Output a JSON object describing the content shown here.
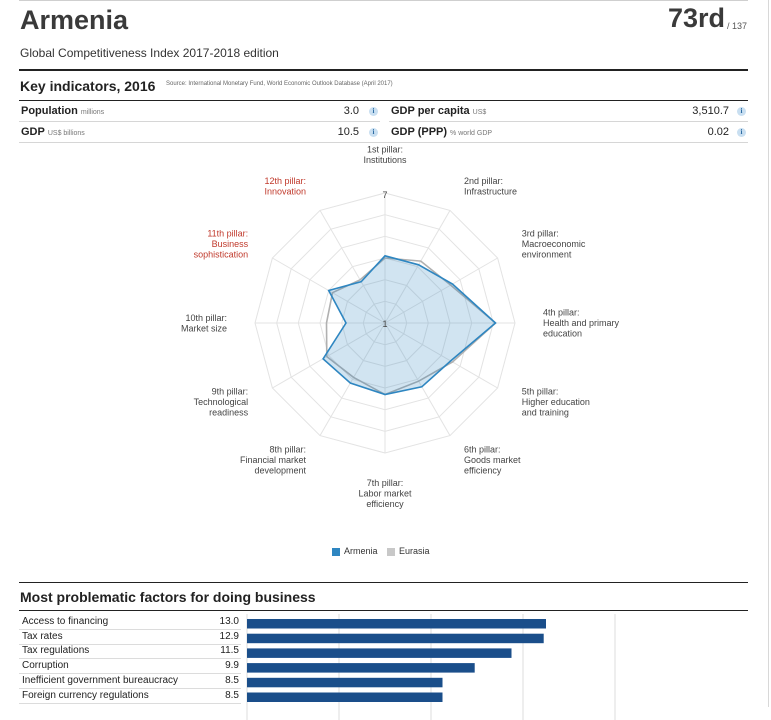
{
  "header": {
    "country": "Armenia",
    "rank": "73rd",
    "rank_of": "/ 137",
    "edition": "Global Competitiveness Index 2017-2018 edition"
  },
  "key_indicators": {
    "title": "Key indicators, 2016",
    "source": "Source: International Monetary Fund, World Economic Outlook Database (April 2017)",
    "left": [
      {
        "label": "Population",
        "unit": "millions",
        "value": "3.0"
      },
      {
        "label": "GDP",
        "unit": "US$ billions",
        "value": "10.5"
      }
    ],
    "right": [
      {
        "label": "GDP per capita",
        "unit": "US$",
        "value": "3,510.7"
      },
      {
        "label": "GDP (PPP)",
        "unit": "% world GDP",
        "value": "0.02"
      }
    ],
    "info_icon": "info-icon"
  },
  "radar": {
    "max_label": "7",
    "min_label": "1",
    "pillars": [
      {
        "lines": [
          "1st pillar:",
          "Institutions"
        ],
        "color": "#444444"
      },
      {
        "lines": [
          "2nd pillar:",
          "Infrastructure"
        ],
        "color": "#444444"
      },
      {
        "lines": [
          "3rd pillar:",
          "Macroeconomic",
          "environment"
        ],
        "color": "#444444"
      },
      {
        "lines": [
          "4th pillar:",
          "Health and primary",
          "education"
        ],
        "color": "#444444"
      },
      {
        "lines": [
          "5th pillar:",
          "Higher education",
          "and training"
        ],
        "color": "#444444"
      },
      {
        "lines": [
          "6th pillar:",
          "Goods market",
          "efficiency"
        ],
        "color": "#444444"
      },
      {
        "lines": [
          "7th pillar:",
          "Labor market",
          "efficiency"
        ],
        "color": "#444444"
      },
      {
        "lines": [
          "8th pillar:",
          "Financial market",
          "development"
        ],
        "color": "#444444"
      },
      {
        "lines": [
          "9th pillar:",
          "Technological",
          "readiness"
        ],
        "color": "#444444"
      },
      {
        "lines": [
          "10th pillar:",
          "Market size"
        ],
        "color": "#444444"
      },
      {
        "lines": [
          "11th pillar:",
          "Business",
          "sophistication"
        ],
        "color": "#c0392b"
      },
      {
        "lines": [
          "12th pillar:",
          "Innovation"
        ],
        "color": "#c0392b"
      }
    ]
  },
  "legend": {
    "items": [
      {
        "label": "Armenia",
        "color": "#2e86c1"
      },
      {
        "label": "Eurasia",
        "color": "#c8c8c8"
      }
    ]
  },
  "problematic": {
    "title": "Most problematic factors for doing business",
    "items": [
      {
        "label": "Access to financing",
        "value": "13.0"
      },
      {
        "label": "Tax rates",
        "value": "12.9"
      },
      {
        "label": "Tax regulations",
        "value": "11.5"
      },
      {
        "label": "Corruption",
        "value": "9.9"
      },
      {
        "label": "Inefficient government bureaucracy",
        "value": "8.5"
      },
      {
        "label": "Foreign currency regulations",
        "value": "8.5"
      }
    ],
    "bar_color": "#1a4e8a"
  },
  "chart_data": [
    {
      "type": "radar",
      "range": [
        1,
        7
      ],
      "categories": [
        "1st pillar: Institutions",
        "2nd pillar: Infrastructure",
        "3rd pillar: Macroeconomic environment",
        "4th pillar: Health and primary education",
        "5th pillar: Higher education and training",
        "6th pillar: Goods market efficiency",
        "7th pillar: Labor market efficiency",
        "8th pillar: Financial market development",
        "9th pillar: Technological readiness",
        "10th pillar: Market size",
        "11th pillar: Business sophistication",
        "12th pillar: Innovation"
      ],
      "series": [
        {
          "name": "Armenia",
          "color": "#2e86c1",
          "values": [
            4.1,
            4.1,
            4.6,
            6.1,
            4.5,
            4.4,
            4.3,
            4.2,
            4.3,
            2.8,
            4.0,
            3.2
          ]
        },
        {
          "name": "Eurasia",
          "color": "#b0b0b0",
          "values": [
            4.0,
            4.3,
            4.5,
            6.1,
            4.6,
            4.1,
            4.3,
            3.9,
            4.1,
            3.7,
            3.8,
            3.3
          ]
        }
      ],
      "legend": "bottom"
    },
    {
      "type": "bar",
      "orientation": "horizontal",
      "categories": [
        "Access to financing",
        "Tax rates",
        "Tax regulations",
        "Corruption",
        "Inefficient government bureaucracy",
        "Foreign currency regulations"
      ],
      "values": [
        13.0,
        12.9,
        11.5,
        9.9,
        8.5,
        8.5
      ],
      "xlim": [
        0,
        16
      ]
    }
  ]
}
